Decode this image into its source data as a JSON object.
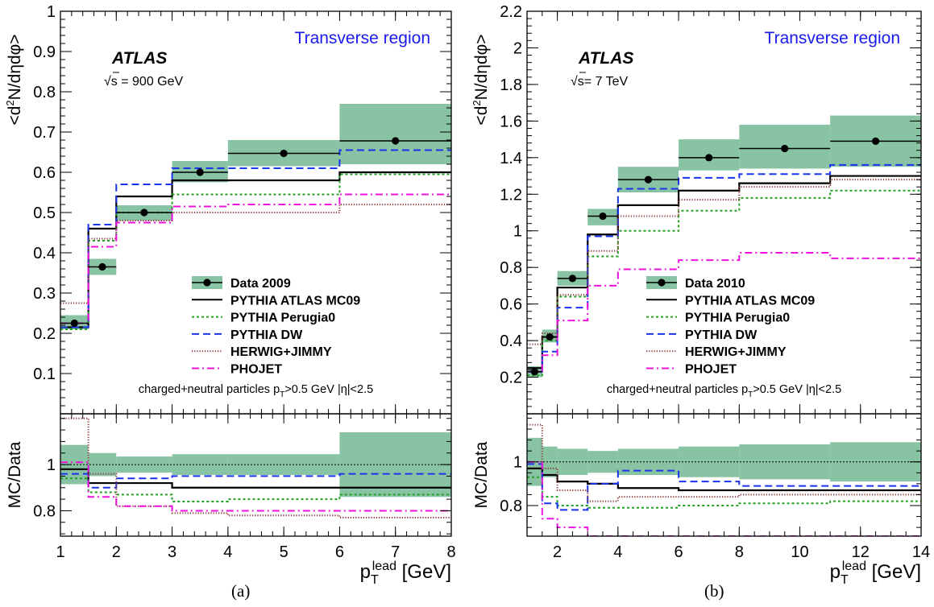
{
  "captions": [
    "(a)",
    "(b)"
  ],
  "chart_data": [
    {
      "type": "line",
      "panel_id": "a",
      "title": "",
      "region_label": "Transverse region",
      "experiment_label": "ATLAS",
      "energy_label": "√s = 900 GeV",
      "selection_label": "charged+neutral particles p_T>0.5 GeV  |η|<2.5",
      "ylabel": "<d²N/dηdφ>",
      "ratio_ylabel": "MC/Data",
      "xlabel": "p_T^lead [GeV]",
      "xlim": [
        1,
        8
      ],
      "ylim": [
        0,
        1
      ],
      "ratio_ylim": [
        0.69,
        1.22
      ],
      "xticks": [
        1,
        2,
        3,
        4,
        5,
        6,
        7,
        8
      ],
      "yticks": [
        0.1,
        0.2,
        0.3,
        0.4,
        0.5,
        0.6,
        0.7,
        0.8,
        0.9,
        1
      ],
      "ytick_labels": [
        "0.1",
        "0.2",
        "0.3",
        "0.4",
        "0.5",
        "0.6",
        "0.7",
        "0.8",
        "0.9",
        "1"
      ],
      "ratio_yticks": [
        0.8,
        1
      ],
      "ratio_ytick_labels": [
        "0.8",
        "1"
      ],
      "bin_edges": [
        1,
        1.5,
        2,
        3,
        4,
        6,
        8
      ],
      "data": {
        "name": "Data 2009",
        "x": [
          1.25,
          1.75,
          2.5,
          3.5,
          5,
          7
        ],
        "y": [
          0.225,
          0.365,
          0.5,
          0.6,
          0.647,
          0.678
        ],
        "band_low": [
          0.21,
          0.345,
          0.48,
          0.575,
          0.615,
          0.62
        ],
        "band_high": [
          0.245,
          0.385,
          0.518,
          0.628,
          0.68,
          0.77
        ],
        "ratio_band_half": [
          0.085,
          0.05,
          0.035,
          0.045,
          0.045,
          0.14
        ]
      },
      "series": [
        {
          "name": "PYTHIA ATLAS MC09",
          "color": "#000000",
          "style": "solid",
          "values": [
            0.215,
            0.46,
            0.54,
            0.58,
            0.58,
            0.6
          ],
          "ratio": [
            0.98,
            0.92,
            0.92,
            0.9,
            0.9,
            0.9
          ]
        },
        {
          "name": "PYTHIA Perugia0",
          "color": "#22a022",
          "style": "dotted",
          "values": [
            0.21,
            0.43,
            0.5,
            0.545,
            0.545,
            0.595
          ],
          "ratio": [
            0.94,
            0.88,
            0.87,
            0.84,
            0.85,
            0.87
          ]
        },
        {
          "name": "PYTHIA DW",
          "color": "#1a33ee",
          "style": "dashed",
          "values": [
            0.215,
            0.47,
            0.57,
            0.61,
            0.61,
            0.655
          ],
          "ratio": [
            0.96,
            0.9,
            0.94,
            0.95,
            0.95,
            0.96
          ]
        },
        {
          "name": "HERWIG+JIMMY",
          "color": "#8b3a3a",
          "style": "finedot",
          "values": [
            0.275,
            0.435,
            0.48,
            0.5,
            0.5,
            0.52
          ],
          "ratio": [
            1.2,
            0.96,
            0.82,
            0.79,
            0.78,
            0.77
          ]
        },
        {
          "name": "PHOJET",
          "color": "#ee11dd",
          "style": "dashdot",
          "values": [
            0.225,
            0.415,
            0.475,
            0.515,
            0.52,
            0.545
          ],
          "ratio": [
            1.01,
            0.86,
            0.82,
            0.8,
            0.8,
            0.8
          ]
        }
      ]
    },
    {
      "type": "line",
      "panel_id": "b",
      "title": "",
      "region_label": "Transverse region",
      "experiment_label": "ATLAS",
      "energy_label": "√s= 7 TeV",
      "selection_label": "charged+neutral particles p_T>0.5 GeV  |η|<2.5",
      "ylabel": "<d²N/dηdφ>",
      "ratio_ylabel": "MC/Data",
      "xlabel": "p_T^lead [GeV]",
      "xlim": [
        1,
        14
      ],
      "ylim": [
        0,
        2.2
      ],
      "ratio_ylim": [
        0.66,
        1.22
      ],
      "xticks": [
        2,
        4,
        6,
        8,
        10,
        12,
        14
      ],
      "yticks": [
        0.2,
        0.4,
        0.6,
        0.8,
        1,
        1.2,
        1.4,
        1.6,
        1.8,
        2,
        2.2
      ],
      "ytick_labels": [
        "0.2",
        "0.4",
        "0.6",
        "0.8",
        "1",
        "1.2",
        "1.4",
        "1.6",
        "1.8",
        "2",
        "2.2"
      ],
      "ratio_yticks": [
        0.8,
        1
      ],
      "ratio_ytick_labels": [
        "0.8",
        "1"
      ],
      "bin_edges": [
        1,
        1.5,
        2,
        3,
        4,
        6,
        8,
        11,
        14
      ],
      "data": {
        "name": "Data 2010",
        "x": [
          1.25,
          1.75,
          2.5,
          3.5,
          5,
          7,
          9.5,
          12.5
        ],
        "y": [
          0.23,
          0.42,
          0.74,
          1.08,
          1.28,
          1.4,
          1.45,
          1.49
        ],
        "band_low": [
          0.2,
          0.39,
          0.7,
          1.03,
          1.21,
          1.33,
          1.34,
          1.35
        ],
        "band_high": [
          0.26,
          0.46,
          0.78,
          1.12,
          1.35,
          1.5,
          1.58,
          1.63
        ],
        "ratio_band_half": [
          0.11,
          0.07,
          0.06,
          0.05,
          0.06,
          0.07,
          0.08,
          0.09
        ]
      },
      "series": [
        {
          "name": "PYTHIA ATLAS MC09",
          "color": "#000000",
          "style": "solid",
          "values": [
            0.25,
            0.42,
            0.69,
            0.98,
            1.14,
            1.22,
            1.26,
            1.3
          ],
          "ratio": [
            0.97,
            0.94,
            0.91,
            0.9,
            0.88,
            0.87,
            0.87,
            0.87
          ]
        },
        {
          "name": "PYTHIA Perugia0",
          "color": "#22a022",
          "style": "dotted",
          "values": [
            0.21,
            0.4,
            0.64,
            0.86,
            1,
            1.11,
            1.18,
            1.22
          ],
          "ratio": [
            0.93,
            0.84,
            0.8,
            0.79,
            0.79,
            0.8,
            0.81,
            0.82
          ]
        },
        {
          "name": "PYTHIA DW",
          "color": "#1a33ee",
          "style": "dashed",
          "values": [
            0.23,
            0.34,
            0.58,
            0.97,
            1.23,
            1.29,
            1.31,
            1.36
          ],
          "ratio": [
            0.99,
            0.81,
            0.78,
            0.9,
            0.96,
            0.91,
            0.89,
            0.89
          ]
        },
        {
          "name": "HERWIG+JIMMY",
          "color": "#8b3a3a",
          "style": "finedot",
          "values": [
            0.38,
            0.44,
            0.65,
            0.89,
            1.08,
            1.17,
            1.24,
            1.28
          ],
          "ratio": [
            1.17,
            0.97,
            0.87,
            0.82,
            0.84,
            0.84,
            0.85,
            0.85
          ]
        },
        {
          "name": "PHOJET",
          "color": "#ee11dd",
          "style": "dashdot",
          "values": [
            0.23,
            0.32,
            0.51,
            0.7,
            0.79,
            0.84,
            0.88,
            0.85
          ],
          "ratio": [
            1.0,
            0.74,
            0.7,
            0.64,
            0.62,
            0.61,
            0.61,
            0.61
          ]
        }
      ]
    }
  ]
}
